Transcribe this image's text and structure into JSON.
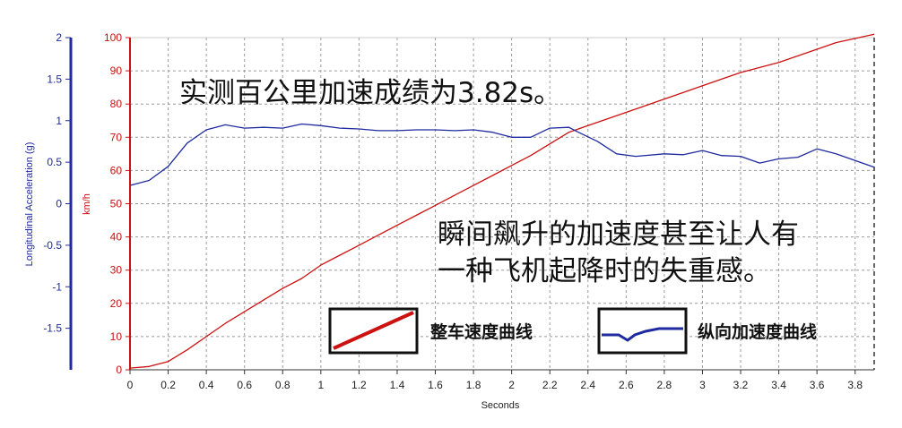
{
  "chart_data": {
    "type": "line",
    "xlabel": "Seconds",
    "xlim": [
      0,
      3.9
    ],
    "x_ticks": [
      "0",
      "0.2",
      "0.4",
      "0.6",
      "0.8",
      "1",
      "1.2",
      "1.4",
      "1.6",
      "1.8",
      "2",
      "2.2",
      "2.4",
      "2.6",
      "2.8",
      "3",
      "3.2",
      "3.4",
      "3.6",
      "3.8"
    ],
    "y_left": {
      "label": "Longitudinal Acceleration (g)",
      "ylim": [
        -2,
        2
      ],
      "ticks": [
        "2",
        "1.5",
        "1",
        "0.5",
        "0",
        "-0.5",
        "-1",
        "-1.5"
      ],
      "color": "#1e2a9e"
    },
    "y_right": {
      "label": "km/h",
      "ylim": [
        0,
        100
      ],
      "ticks": [
        "100",
        "90",
        "80",
        "70",
        "60",
        "50",
        "40",
        "30",
        "20",
        "10",
        "0"
      ],
      "color": "#cc1111"
    },
    "grid": true,
    "legend_position": "bottom-right",
    "series": [
      {
        "name": "整车速度曲线",
        "axis": "right",
        "color": "#cc1111",
        "x": [
          0,
          0.1,
          0.2,
          0.3,
          0.4,
          0.5,
          0.6,
          0.7,
          0.8,
          0.9,
          1.0,
          1.1,
          1.2,
          1.3,
          1.4,
          1.5,
          1.6,
          1.7,
          1.8,
          1.9,
          2.0,
          2.1,
          2.2,
          2.3,
          2.4,
          2.5,
          2.6,
          2.7,
          2.8,
          2.9,
          3.0,
          3.1,
          3.2,
          3.3,
          3.4,
          3.5,
          3.6,
          3.7,
          3.82,
          3.9
        ],
        "values": [
          0.5,
          1,
          2.5,
          6,
          10,
          14,
          17.5,
          21,
          24.5,
          27.5,
          31.5,
          34.5,
          37.5,
          40.5,
          43.5,
          46.5,
          49.5,
          52.5,
          55.5,
          58.5,
          61.5,
          64.5,
          68,
          71.5,
          73.5,
          75.5,
          77.5,
          79.5,
          81.5,
          83.5,
          85.5,
          87.5,
          89.5,
          91,
          92.5,
          94.5,
          96.5,
          98.5,
          100,
          101
        ]
      },
      {
        "name": "纵向加速度曲线",
        "axis": "left",
        "color": "#1e2a9e",
        "x": [
          0,
          0.1,
          0.2,
          0.3,
          0.4,
          0.5,
          0.6,
          0.7,
          0.8,
          0.9,
          1.0,
          1.1,
          1.2,
          1.3,
          1.4,
          1.5,
          1.6,
          1.7,
          1.8,
          1.9,
          2.0,
          2.1,
          2.2,
          2.3,
          2.35,
          2.45,
          2.55,
          2.65,
          2.8,
          2.9,
          3.0,
          3.1,
          3.2,
          3.3,
          3.4,
          3.5,
          3.6,
          3.7,
          3.8,
          3.9
        ],
        "values": [
          0.22,
          0.28,
          0.45,
          0.73,
          0.89,
          0.95,
          0.91,
          0.92,
          0.91,
          0.96,
          0.94,
          0.91,
          0.9,
          0.88,
          0.88,
          0.89,
          0.89,
          0.88,
          0.89,
          0.86,
          0.8,
          0.8,
          0.91,
          0.92,
          0.86,
          0.75,
          0.6,
          0.57,
          0.6,
          0.59,
          0.64,
          0.58,
          0.57,
          0.49,
          0.54,
          0.56,
          0.66,
          0.6,
          0.52,
          0.44
        ]
      }
    ]
  },
  "annotations": {
    "top_text": "实测百公里加速成绩为3.82s。",
    "mid_text_line1": "瞬间飙升的加速度甚至让人有",
    "mid_text_line2": "一种飞机起降时的失重感。"
  },
  "legend": {
    "speed_label": "整车速度曲线",
    "accel_label": "纵向加速度曲线"
  }
}
